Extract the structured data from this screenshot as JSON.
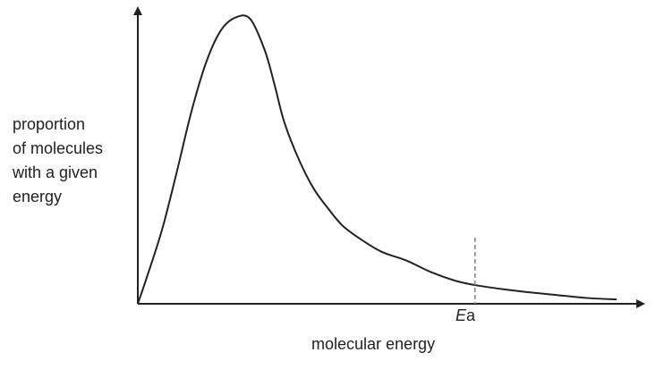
{
  "chart_data": {
    "type": "line",
    "title": "",
    "ylabel": "proportion of molecules with a given energy",
    "ylabel_lines": [
      "proportion",
      "of molecules",
      "with a given",
      "energy"
    ],
    "xlabel": "molecular energy",
    "grid": false,
    "legend": "none",
    "ticks": "none",
    "xlim": [
      0,
      1
    ],
    "ylim": [
      0,
      1
    ],
    "series": [
      {
        "x": [
          0.0,
          0.02,
          0.05,
          0.08,
          0.11,
          0.14,
          0.17,
          0.2,
          0.23,
          0.26,
          0.28,
          0.3,
          0.33,
          0.36,
          0.39,
          0.42,
          0.46,
          0.5,
          0.55,
          0.6,
          0.65,
          0.69,
          0.75,
          0.8,
          0.86,
          0.92,
          0.98
        ],
        "values": [
          0.0,
          0.1,
          0.26,
          0.46,
          0.67,
          0.84,
          0.95,
          0.995,
          0.99,
          0.88,
          0.76,
          0.63,
          0.5,
          0.4,
          0.33,
          0.27,
          0.22,
          0.18,
          0.15,
          0.11,
          0.08,
          0.065,
          0.05,
          0.04,
          0.03,
          0.02,
          0.015
        ],
        "color": "#222222"
      }
    ],
    "annotations": [
      {
        "type": "vline",
        "x": 0.69,
        "style": "dashed",
        "label_italic": "E",
        "label_rest": "a",
        "color": "#888888"
      }
    ]
  }
}
